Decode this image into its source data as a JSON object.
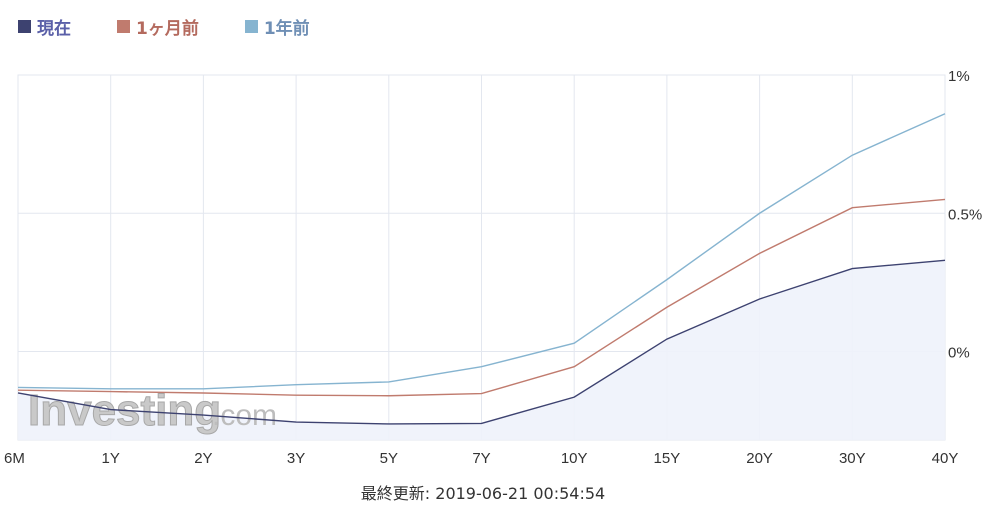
{
  "legend": [
    {
      "label": "現在",
      "color": "#3d4270",
      "text_color": "#5a5fa8"
    },
    {
      "label": "1ヶ月前",
      "color": "#c07b6e",
      "text_color": "#b46a5e"
    },
    {
      "label": "1年前",
      "color": "#86b4d0",
      "text_color": "#6f8fb5"
    }
  ],
  "updated": "最終更新: 2019-06-21 00:54:54",
  "watermark": {
    "brand": "Investing",
    "suffix": ".com"
  },
  "chart_data": {
    "type": "line",
    "categories": [
      "6M",
      "1Y",
      "2Y",
      "3Y",
      "5Y",
      "7Y",
      "10Y",
      "15Y",
      "20Y",
      "30Y",
      "40Y"
    ],
    "y_ticks": [
      {
        "value": 1.0,
        "label": "1%"
      },
      {
        "value": 0.5,
        "label": "0.5%"
      },
      {
        "value": 0.0,
        "label": "0%"
      }
    ],
    "ylim": [
      -0.32,
      1.0
    ],
    "grid": true,
    "legend_position": "top-left",
    "series": [
      {
        "name": "現在",
        "color": "#3d4270",
        "values": [
          -0.15,
          -0.21,
          -0.23,
          -0.255,
          -0.262,
          -0.26,
          -0.165,
          0.045,
          0.19,
          0.3,
          0.33
        ]
      },
      {
        "name": "1ヶ月前",
        "color": "#c07b6e",
        "values": [
          -0.14,
          -0.145,
          -0.15,
          -0.158,
          -0.16,
          -0.152,
          -0.055,
          0.16,
          0.355,
          0.52,
          0.55
        ]
      },
      {
        "name": "1年前",
        "color": "#86b4d0",
        "values": [
          -0.13,
          -0.135,
          -0.135,
          -0.12,
          -0.11,
          -0.055,
          0.03,
          0.26,
          0.5,
          0.71,
          0.86
        ]
      }
    ]
  }
}
